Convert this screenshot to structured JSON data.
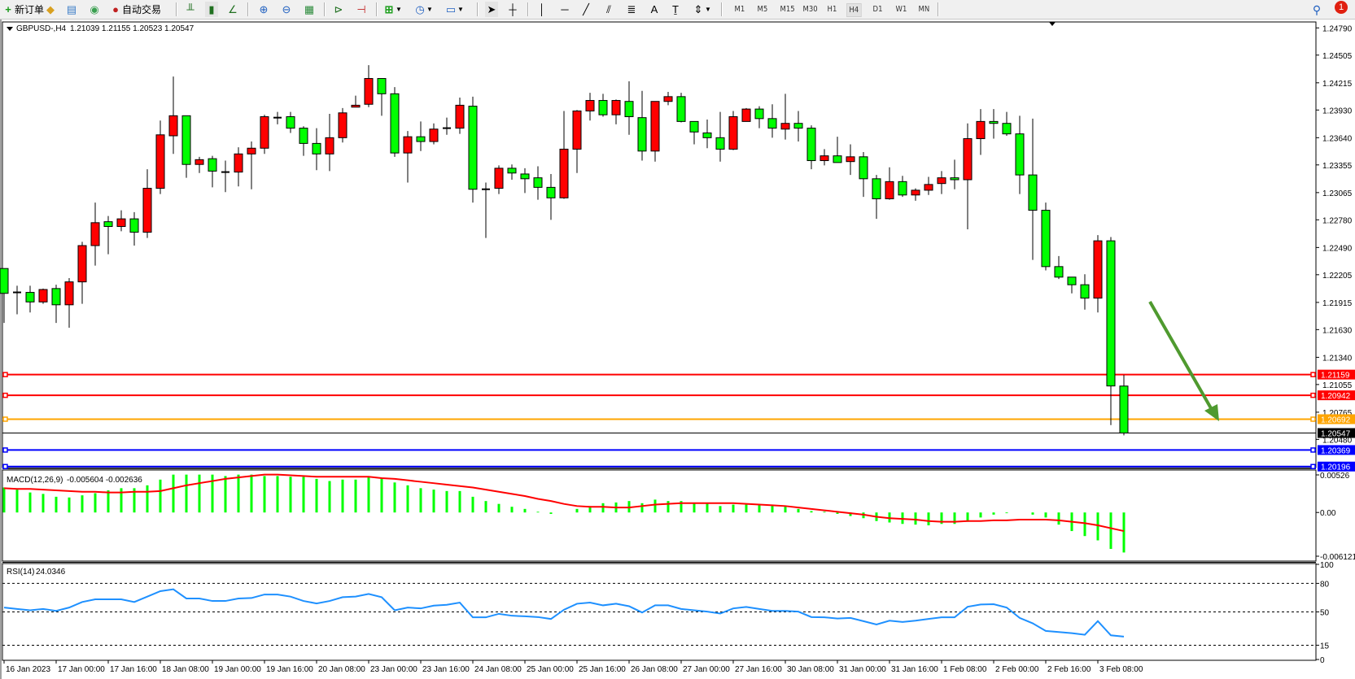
{
  "toolbar": {
    "new_order": "新订单",
    "auto_trading": "自动交易",
    "timeframes": [
      "M1",
      "M5",
      "M15",
      "M30",
      "H1",
      "H4",
      "D1",
      "W1",
      "MN"
    ],
    "active_timeframe": "H4",
    "notification_count": "1",
    "icons": [
      "new-order-icon",
      "market-watch-icon",
      "data-window-icon",
      "signals-icon",
      "auto-trading-icon",
      "bar-chart-icon",
      "candlestick-icon",
      "line-chart-icon",
      "zoom-in-icon",
      "zoom-out-icon",
      "tile-windows-icon",
      "auto-scroll-icon",
      "chart-shift-icon",
      "indicators-icon",
      "periods-icon",
      "templates-icon",
      "cursor-icon",
      "crosshair-icon",
      "vertical-line-icon",
      "horizontal-line-icon",
      "trendline-icon",
      "equidistant-channel-icon",
      "fibonacci-icon",
      "text-icon",
      "text-label-icon",
      "arrows-icon",
      "search-icon",
      "notification-icon"
    ]
  },
  "chart": {
    "symbol_title": "GBPUSD-,H4",
    "ohlc_readout": "1.21039 1.21155 1.20523 1.20547",
    "colors": {
      "bull": "#ff0000",
      "bear": "#00ff00",
      "wick": "#000000",
      "arrow": "#4f9a2f"
    },
    "price_axis_labels": [
      "1.24790",
      "1.24505",
      "1.24215",
      "1.23930",
      "1.23640",
      "1.23355",
      "1.23065",
      "1.22780",
      "1.22490",
      "1.22205",
      "1.21915",
      "1.21630",
      "1.21340",
      "1.21055",
      "1.20765",
      "1.20480"
    ],
    "levels": [
      {
        "price": "1.21159",
        "color": "#ff0000"
      },
      {
        "price": "1.20942",
        "color": "#ff0000"
      },
      {
        "price": "1.20692",
        "color": "#ffa500"
      },
      {
        "price": "1.20369",
        "color": "#0000ff"
      },
      {
        "price": "1.20196",
        "color": "#0000ff"
      }
    ],
    "bid": {
      "price": "1.20547",
      "color": "#000000"
    },
    "time_labels": [
      "16 Jan 2023",
      "17 Jan 00:00",
      "17 Jan 16:00",
      "18 Jan 08:00",
      "19 Jan 00:00",
      "19 Jan 16:00",
      "20 Jan 08:00",
      "23 Jan 00:00",
      "23 Jan 16:00",
      "24 Jan 08:00",
      "25 Jan 00:00",
      "25 Jan 16:00",
      "26 Jan 08:00",
      "27 Jan 00:00",
      "27 Jan 16:00",
      "30 Jan 08:00",
      "31 Jan 00:00",
      "31 Jan 16:00",
      "1 Feb 08:00",
      "2 Feb 00:00",
      "2 Feb 16:00",
      "3 Feb 08:00"
    ]
  },
  "chart_data": [
    {
      "type": "candlestick",
      "title": "GBPUSD-,H4",
      "ylim": [
        1.20196,
        1.2479
      ],
      "fields": [
        "open",
        "high",
        "low",
        "close"
      ],
      "candles": [
        [
          1.2227,
          1.2227,
          1.217,
          1.2201
        ],
        [
          1.2201,
          1.2209,
          1.2179,
          1.2202
        ],
        [
          1.2202,
          1.2209,
          1.2181,
          1.2192
        ],
        [
          1.2192,
          1.2206,
          1.219,
          1.2205
        ],
        [
          1.2206,
          1.221,
          1.217,
          1.2189
        ],
        [
          1.2189,
          1.2217,
          1.2165,
          1.2213
        ],
        [
          1.2213,
          1.2255,
          1.219,
          1.2251
        ],
        [
          1.2251,
          1.2296,
          1.223,
          1.2275
        ],
        [
          1.2276,
          1.2282,
          1.2242,
          1.2271
        ],
        [
          1.2271,
          1.2288,
          1.2266,
          1.2279
        ],
        [
          1.2279,
          1.2286,
          1.2251,
          1.2265
        ],
        [
          1.2265,
          1.2331,
          1.2259,
          1.2311
        ],
        [
          1.2311,
          1.2382,
          1.2305,
          1.2367
        ],
        [
          1.2366,
          1.2428,
          1.2347,
          1.2387
        ],
        [
          1.2387,
          1.2387,
          1.2322,
          1.2336
        ],
        [
          1.2336,
          1.2344,
          1.2327,
          1.2341
        ],
        [
          1.2342,
          1.2345,
          1.2312,
          1.2329
        ],
        [
          1.2328,
          1.234,
          1.2307,
          1.2328
        ],
        [
          1.2328,
          1.2354,
          1.2313,
          1.2347
        ],
        [
          1.2347,
          1.236,
          1.231,
          1.2353
        ],
        [
          1.2353,
          1.2388,
          1.2347,
          1.2386
        ],
        [
          1.2385,
          1.2391,
          1.2378,
          1.2385
        ],
        [
          1.2386,
          1.2391,
          1.2369,
          1.2374
        ],
        [
          1.2374,
          1.2376,
          1.2345,
          1.2358
        ],
        [
          1.2358,
          1.2374,
          1.233,
          1.2347
        ],
        [
          1.2347,
          1.2389,
          1.2329,
          1.2364
        ],
        [
          1.2364,
          1.2395,
          1.2359,
          1.239
        ],
        [
          1.2396,
          1.2408,
          1.2396,
          1.2398
        ],
        [
          1.2399,
          1.244,
          1.2396,
          1.2426
        ],
        [
          1.2426,
          1.2426,
          1.2387,
          1.241
        ],
        [
          1.241,
          1.2417,
          1.2344,
          1.2348
        ],
        [
          1.2348,
          1.2371,
          1.2317,
          1.2365
        ],
        [
          1.2365,
          1.2381,
          1.235,
          1.236
        ],
        [
          1.236,
          1.2379,
          1.2357,
          1.2373
        ],
        [
          1.2373,
          1.2385,
          1.2367,
          1.2374
        ],
        [
          1.2374,
          1.2406,
          1.2368,
          1.2398
        ],
        [
          1.2397,
          1.2407,
          1.2296,
          1.231
        ],
        [
          1.231,
          1.2317,
          1.2259,
          1.231
        ],
        [
          1.2311,
          1.2335,
          1.2305,
          1.2332
        ],
        [
          1.2332,
          1.2336,
          1.232,
          1.2327
        ],
        [
          1.2326,
          1.2332,
          1.2306,
          1.2321
        ],
        [
          1.2322,
          1.2334,
          1.2299,
          1.2312
        ],
        [
          1.2312,
          1.2326,
          1.2278,
          1.2301
        ],
        [
          1.2301,
          1.2392,
          1.23,
          1.2352
        ],
        [
          1.2352,
          1.2393,
          1.2327,
          1.2392
        ],
        [
          1.2392,
          1.2411,
          1.2382,
          1.2403
        ],
        [
          1.2403,
          1.241,
          1.2386,
          1.2388
        ],
        [
          1.2388,
          1.2404,
          1.2378,
          1.2403
        ],
        [
          1.2402,
          1.2423,
          1.2367,
          1.2386
        ],
        [
          1.2385,
          1.2413,
          1.234,
          1.235
        ],
        [
          1.235,
          1.2402,
          1.2339,
          1.2402
        ],
        [
          1.2402,
          1.2412,
          1.2398,
          1.2407
        ],
        [
          1.2407,
          1.2411,
          1.238,
          1.2381
        ],
        [
          1.2381,
          1.2381,
          1.2357,
          1.237
        ],
        [
          1.2369,
          1.2383,
          1.2353,
          1.2364
        ],
        [
          1.2364,
          1.2391,
          1.2339,
          1.2352
        ],
        [
          1.2352,
          1.2392,
          1.2351,
          1.2386
        ],
        [
          1.2381,
          1.2395,
          1.2381,
          1.2394
        ],
        [
          1.2394,
          1.2397,
          1.2374,
          1.2384
        ],
        [
          1.2384,
          1.2399,
          1.2364,
          1.2374
        ],
        [
          1.2373,
          1.241,
          1.2362,
          1.2379
        ],
        [
          1.2379,
          1.2392,
          1.236,
          1.2374
        ],
        [
          1.2374,
          1.2377,
          1.2331,
          1.234
        ],
        [
          1.234,
          1.2352,
          1.2335,
          1.2345
        ],
        [
          1.2345,
          1.2365,
          1.2338,
          1.2338
        ],
        [
          1.2339,
          1.2357,
          1.2325,
          1.2344
        ],
        [
          1.2344,
          1.2349,
          1.2302,
          1.2321
        ],
        [
          1.2321,
          1.2325,
          1.2279,
          1.23
        ],
        [
          1.23,
          1.2333,
          1.2299,
          1.2318
        ],
        [
          1.2318,
          1.2324,
          1.2302,
          1.2304
        ],
        [
          1.2304,
          1.2311,
          1.2298,
          1.2309
        ],
        [
          1.2309,
          1.2323,
          1.2304,
          1.2315
        ],
        [
          1.2316,
          1.2329,
          1.2305,
          1.2322
        ],
        [
          1.2322,
          1.2341,
          1.231,
          1.232
        ],
        [
          1.232,
          1.2379,
          1.2268,
          1.2363
        ],
        [
          1.2363,
          1.2394,
          1.2346,
          1.2381
        ],
        [
          1.2381,
          1.2394,
          1.2363,
          1.2379
        ],
        [
          1.2379,
          1.2391,
          1.2366,
          1.2368
        ],
        [
          1.2368,
          1.2387,
          1.2305,
          1.2325
        ],
        [
          1.2325,
          1.2384,
          1.2236,
          1.2288
        ],
        [
          1.2288,
          1.2296,
          1.2225,
          1.2229
        ],
        [
          1.2229,
          1.224,
          1.2216,
          1.2218
        ],
        [
          1.2218,
          1.2218,
          1.2201,
          1.221
        ],
        [
          1.221,
          1.2221,
          1.2184,
          1.2196
        ],
        [
          1.2196,
          1.2262,
          1.2181,
          1.2256
        ],
        [
          1.2256,
          1.226,
          1.2063,
          1.2104
        ],
        [
          1.21039,
          1.21155,
          1.20523,
          1.20547
        ]
      ]
    },
    {
      "type": "bar",
      "title": "MACD(12,26,9)",
      "readout": "-0.005604 -0.002636",
      "axis_labels": [
        "0.00526",
        "0.00",
        "-0.006121"
      ],
      "ylim": [
        -0.006121,
        0.00526
      ],
      "series": [
        {
          "kind": "histogram",
          "color": "#00ff00",
          "values": [
            0.0035,
            0.0032,
            0.0028,
            0.0026,
            0.0022,
            0.0021,
            0.0024,
            0.0027,
            0.0031,
            0.0034,
            0.0034,
            0.0038,
            0.0046,
            0.0053,
            0.0053,
            0.0053,
            0.0053,
            0.0051,
            0.0053,
            0.0053,
            0.0051,
            0.0051,
            0.005,
            0.005,
            0.0047,
            0.0044,
            0.0046,
            0.0046,
            0.005,
            0.0048,
            0.0042,
            0.0038,
            0.0034,
            0.0032,
            0.003,
            0.003,
            0.0022,
            0.0016,
            0.0012,
            0.0008,
            0.0005,
            0.0001,
            -0.0002,
            0.0,
            0.0005,
            0.0009,
            0.0013,
            0.0014,
            0.0016,
            0.0013,
            0.0018,
            0.0016,
            0.0016,
            0.0013,
            0.0013,
            0.0009,
            0.0011,
            0.0011,
            0.0011,
            0.001,
            0.0009,
            0.0005,
            0.0002,
            0.0001,
            -0.0002,
            -0.0005,
            -0.0008,
            -0.0012,
            -0.0014,
            -0.0016,
            -0.0017,
            -0.0018,
            -0.0016,
            -0.0016,
            -0.0013,
            -0.0007,
            -0.0003,
            -0.0001,
            0.0,
            -0.0003,
            -0.0007,
            -0.0017,
            -0.0026,
            -0.0033,
            -0.0039,
            -0.0051,
            -0.0056
          ]
        },
        {
          "kind": "signal",
          "color": "#ff0000",
          "values": [
            0.0034,
            0.0033,
            0.0033,
            0.0032,
            0.0031,
            0.003,
            0.0029,
            0.0029,
            0.0028,
            0.0028,
            0.0029,
            0.0029,
            0.003,
            0.0034,
            0.0038,
            0.0041,
            0.0044,
            0.0047,
            0.0049,
            0.0051,
            0.0053,
            0.0053,
            0.0052,
            0.0051,
            0.005,
            0.005,
            0.005,
            0.005,
            0.005,
            0.0048,
            0.0047,
            0.0045,
            0.0043,
            0.0041,
            0.0039,
            0.0037,
            0.0035,
            0.0032,
            0.0029,
            0.0026,
            0.0023,
            0.0019,
            0.0016,
            0.0012,
            0.0009,
            0.0008,
            0.0008,
            0.0007,
            0.0007,
            0.0009,
            0.0011,
            0.0012,
            0.0013,
            0.0013,
            0.0013,
            0.0013,
            0.0013,
            0.0012,
            0.0011,
            0.001,
            0.0009,
            0.0007,
            0.0005,
            0.0003,
            0.0001,
            -0.0001,
            -0.0003,
            -0.0006,
            -0.0008,
            -0.0009,
            -0.001,
            -0.0012,
            -0.0013,
            -0.0013,
            -0.0012,
            -0.0012,
            -0.0011,
            -0.0011,
            -0.001,
            -0.001,
            -0.001,
            -0.0011,
            -0.0013,
            -0.0015,
            -0.0018,
            -0.0022,
            -0.0026
          ]
        }
      ]
    },
    {
      "type": "line",
      "title": "RSI(14)",
      "readout": "24.0346",
      "axis_labels": [
        "100",
        "80",
        "50",
        "15",
        "0"
      ],
      "levels": [
        80,
        50,
        15
      ],
      "ylim": [
        0,
        100
      ],
      "color": "#1e90ff",
      "values": [
        54.6,
        53.1,
        51.7,
        53.1,
        51.1,
        54.6,
        60.4,
        63.2,
        63.2,
        63.2,
        60.4,
        66.1,
        71.8,
        73.8,
        64.1,
        64.1,
        61.5,
        61.5,
        64.1,
        64.6,
        68.3,
        68.3,
        66.1,
        61.5,
        58.9,
        61.5,
        65.5,
        66.1,
        68.9,
        65.5,
        51.7,
        54.6,
        53.7,
        56.6,
        57.5,
        59.8,
        44.3,
        44.3,
        48.0,
        46.0,
        45.4,
        44.6,
        42.6,
        52.3,
        58.6,
        59.8,
        56.9,
        58.6,
        56.0,
        49.4,
        56.9,
        56.9,
        53.1,
        51.7,
        50.3,
        48.3,
        53.7,
        55.2,
        53.1,
        51.1,
        51.1,
        50.3,
        44.6,
        44.3,
        43.1,
        43.7,
        40.3,
        36.8,
        40.8,
        39.4,
        40.8,
        42.6,
        44.3,
        44.3,
        55.4,
        57.8,
        58.1,
        54.6,
        43.7,
        38.0,
        30.0,
        28.8,
        27.7,
        26.0,
        40.3,
        25.4,
        24.0346
      ]
    }
  ]
}
